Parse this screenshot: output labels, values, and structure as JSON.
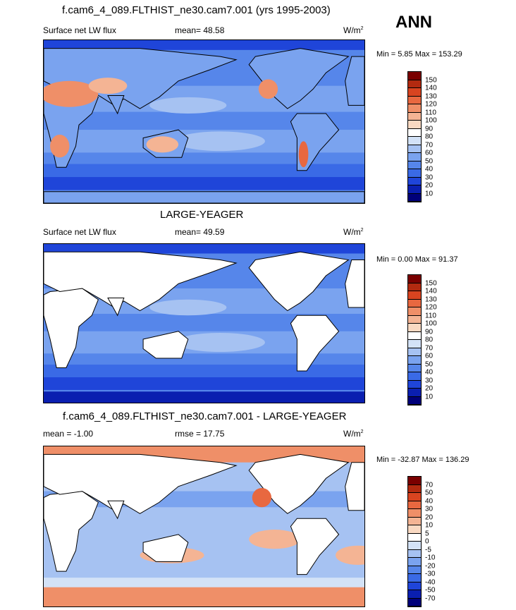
{
  "header": {
    "season": "ANN"
  },
  "panels": [
    {
      "title": "f.cam6_4_089.FLTHIST_ne30.cam7.001 (yrs 1995-2003)",
      "left_label": "Surface net LW flux",
      "center_label": "mean=  48.58",
      "units": "W/m",
      "units_sup": "2",
      "minmax": "Min =   5.85 Max = 153.29",
      "variant": "model"
    },
    {
      "title": "LARGE-YEAGER",
      "left_label": "Surface net LW flux",
      "center_label": "mean=  49.59",
      "units": "W/m",
      "units_sup": "2",
      "minmax": "Min =   0.00 Max =  91.37",
      "variant": "obs"
    },
    {
      "title": "f.cam6_4_089.FLTHIST_ne30.cam7.001 - LARGE-YEAGER",
      "left_label": "mean =  -1.00",
      "center_label": "rmse =  17.75",
      "units": "W/m",
      "units_sup": "2",
      "minmax": "Min = -32.87 Max = 136.29",
      "variant": "diff"
    }
  ],
  "chart_data": [
    {
      "type": "heatmap",
      "title": "f.cam6_4_089.FLTHIST_ne30.cam7.001 (yrs 1995-2003)",
      "field": "Surface net LW flux",
      "units": "W/m2",
      "mean": 48.58,
      "min": 5.85,
      "max": 153.29,
      "levels": [
        10,
        20,
        30,
        40,
        50,
        60,
        70,
        80,
        90,
        100,
        110,
        120,
        130,
        140,
        150
      ],
      "colors": [
        "#00007a",
        "#0a1fb0",
        "#1f45d9",
        "#3a6ae6",
        "#5686ea",
        "#7aa3ef",
        "#a6c2f2",
        "#d3e2f7",
        "#ffffff",
        "#f9d9c2",
        "#f4b494",
        "#ef8f68",
        "#e86840",
        "#d84420",
        "#b22a10",
        "#7a0000"
      ]
    },
    {
      "type": "heatmap",
      "title": "LARGE-YEAGER",
      "field": "Surface net LW flux",
      "units": "W/m2",
      "mean": 49.59,
      "min": 0.0,
      "max": 91.37,
      "levels": [
        10,
        20,
        30,
        40,
        50,
        60,
        70,
        80,
        90,
        100,
        110,
        120,
        130,
        140,
        150
      ],
      "colors": [
        "#00007a",
        "#0a1fb0",
        "#1f45d9",
        "#3a6ae6",
        "#5686ea",
        "#7aa3ef",
        "#a6c2f2",
        "#d3e2f7",
        "#ffffff",
        "#f9d9c2",
        "#f4b494",
        "#ef8f68",
        "#e86840",
        "#d84420",
        "#b22a10",
        "#7a0000"
      ]
    },
    {
      "type": "heatmap",
      "title": "f.cam6_4_089.FLTHIST_ne30.cam7.001 - LARGE-YEAGER",
      "mean": -1.0,
      "rmse": 17.75,
      "units": "W/m2",
      "min": -32.87,
      "max": 136.29,
      "levels": [
        -70,
        -50,
        -40,
        -30,
        -20,
        -10,
        -5,
        0,
        5,
        10,
        20,
        30,
        40,
        50,
        70
      ],
      "colors": [
        "#00007a",
        "#0a1fb0",
        "#1f45d9",
        "#3a6ae6",
        "#5686ea",
        "#7aa3ef",
        "#a6c2f2",
        "#d3e2f7",
        "#ffffff",
        "#f9d9c2",
        "#f4b494",
        "#ef8f68",
        "#e86840",
        "#d84420",
        "#b22a10",
        "#7a0000"
      ]
    }
  ]
}
